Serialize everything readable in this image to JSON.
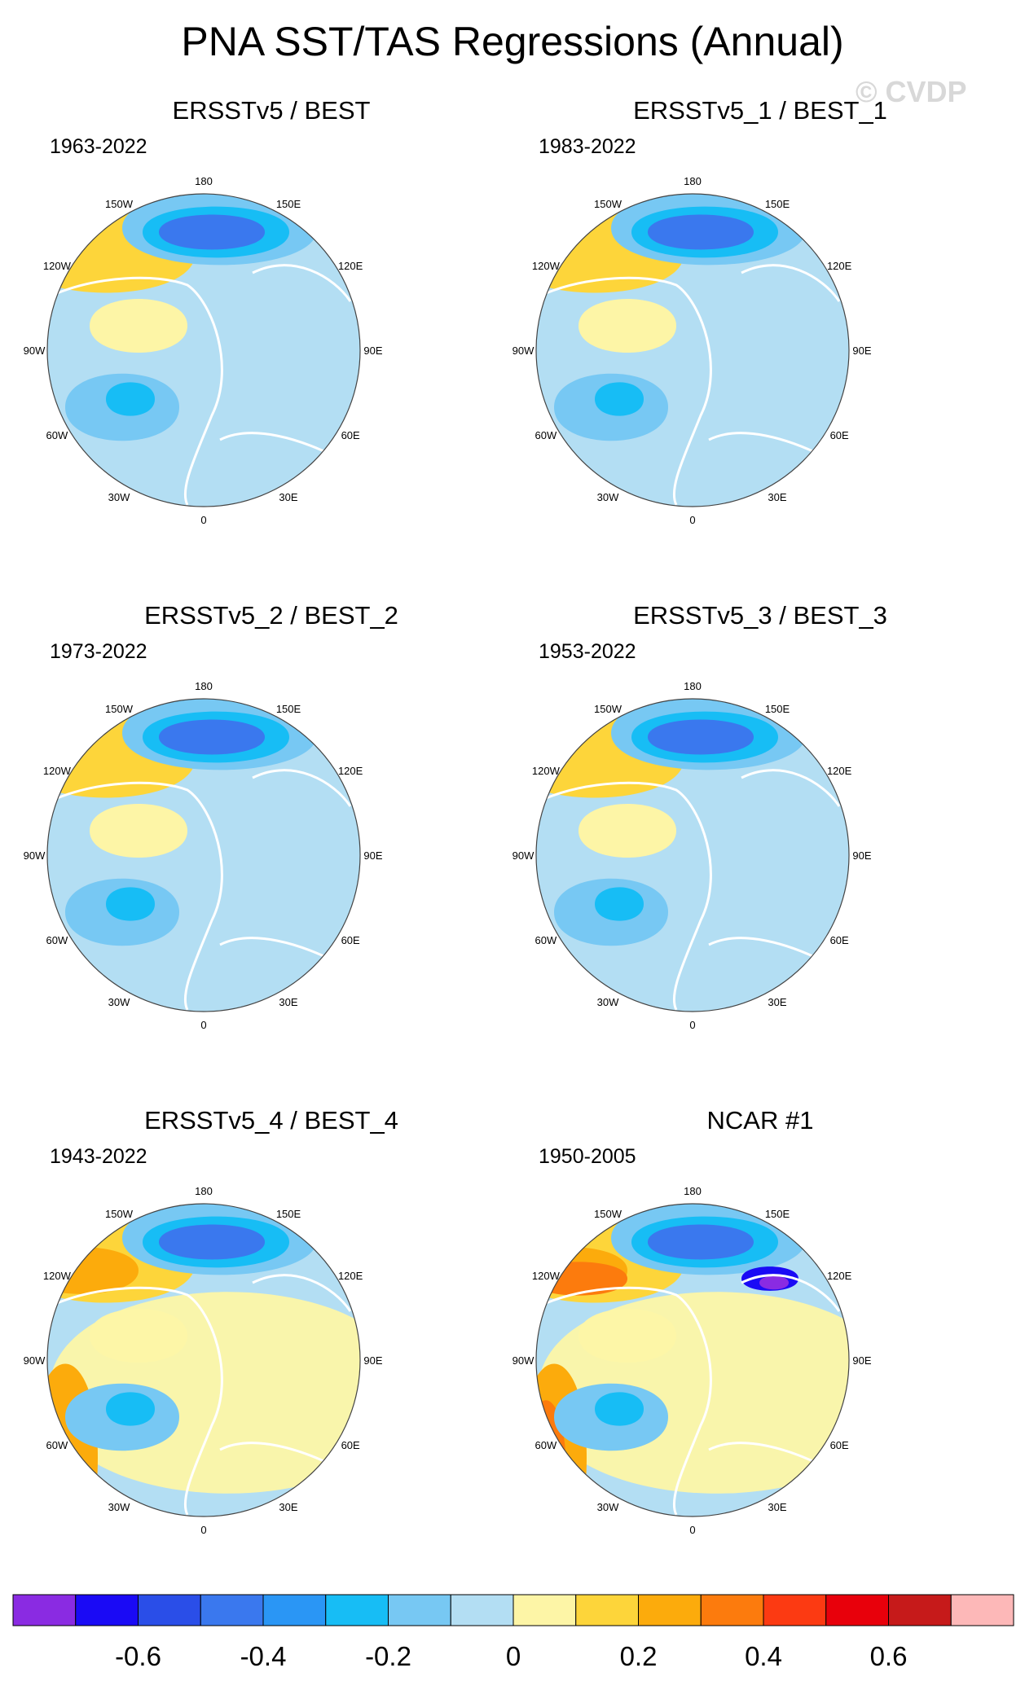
{
  "title": "PNA SST/TAS Regressions (Annual)",
  "watermark": "© CVDP",
  "lon_labels": [
    "180",
    "150E",
    "120E",
    "90E",
    "60E",
    "30E",
    "0",
    "30W",
    "60W",
    "90W",
    "120W",
    "150W"
  ],
  "panels": [
    {
      "name": "ERSSTv5 / BEST",
      "years": "1963-2022"
    },
    {
      "name": "ERSSTv5_1 / BEST_1",
      "years": "1983-2022"
    },
    {
      "name": "ERSSTv5_2 / BEST_2",
      "years": "1973-2022"
    },
    {
      "name": "ERSSTv5_3 / BEST_3",
      "years": "1953-2022"
    },
    {
      "name": "ERSSTv5_4 / BEST_4",
      "years": "1943-2022"
    },
    {
      "name": "NCAR #1",
      "years": "1950-2005"
    }
  ],
  "colorbar": {
    "colors": [
      "#8a2be2",
      "#1a0af5",
      "#2a4ee8",
      "#3a78ee",
      "#2a96f5",
      "#17bdf5",
      "#77c8f3",
      "#b3def3",
      "#fdf5a6",
      "#fdd53a",
      "#fcab0c",
      "#fc7b0d",
      "#fc3a12",
      "#e8000b",
      "#c61a1a",
      "#fdb8b8"
    ],
    "tick_labels": [
      "-0.6",
      "-0.4",
      "-0.2",
      "0",
      "0.2",
      "0.4",
      "0.6"
    ]
  }
}
